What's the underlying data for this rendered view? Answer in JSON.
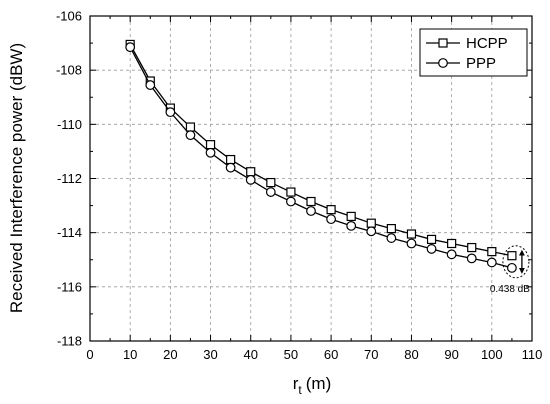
{
  "chart_data": {
    "type": "line",
    "xlabel": "r",
    "xlabel_sub": "t",
    "xlabel_unit": "(m)",
    "ylabel": "Received Interference power (dBW)",
    "xlim": [
      0,
      110
    ],
    "ylim": [
      -118,
      -106
    ],
    "x_ticks": [
      0,
      10,
      20,
      30,
      40,
      50,
      60,
      70,
      80,
      90,
      100,
      110
    ],
    "y_ticks": [
      -118,
      -116,
      -114,
      -112,
      -110,
      -108,
      -106
    ],
    "grid": true,
    "legend_position": "top-right",
    "x": [
      10,
      15,
      20,
      25,
      30,
      35,
      40,
      45,
      50,
      55,
      60,
      65,
      70,
      75,
      80,
      85,
      90,
      95,
      100,
      105
    ],
    "series": [
      {
        "name": "HCPP",
        "marker": "square",
        "color": "#000000",
        "values": [
          -107.05,
          -108.4,
          -109.4,
          -110.1,
          -110.75,
          -111.3,
          -111.75,
          -112.15,
          -112.5,
          -112.85,
          -113.15,
          -113.4,
          -113.65,
          -113.85,
          -114.05,
          -114.25,
          -114.4,
          -114.55,
          -114.7,
          -114.85
        ]
      },
      {
        "name": "PPP",
        "marker": "circle",
        "color": "#000000",
        "values": [
          -107.15,
          -108.55,
          -109.55,
          -110.4,
          -111.05,
          -111.6,
          -112.05,
          -112.5,
          -112.85,
          -113.2,
          -113.5,
          -113.75,
          -113.95,
          -114.2,
          -114.4,
          -114.6,
          -114.8,
          -114.95,
          -115.1,
          -115.3
        ]
      }
    ],
    "annotation": {
      "text": "0.438 dB",
      "x": 105,
      "y_top": -114.85,
      "y_bottom": -115.3
    }
  }
}
